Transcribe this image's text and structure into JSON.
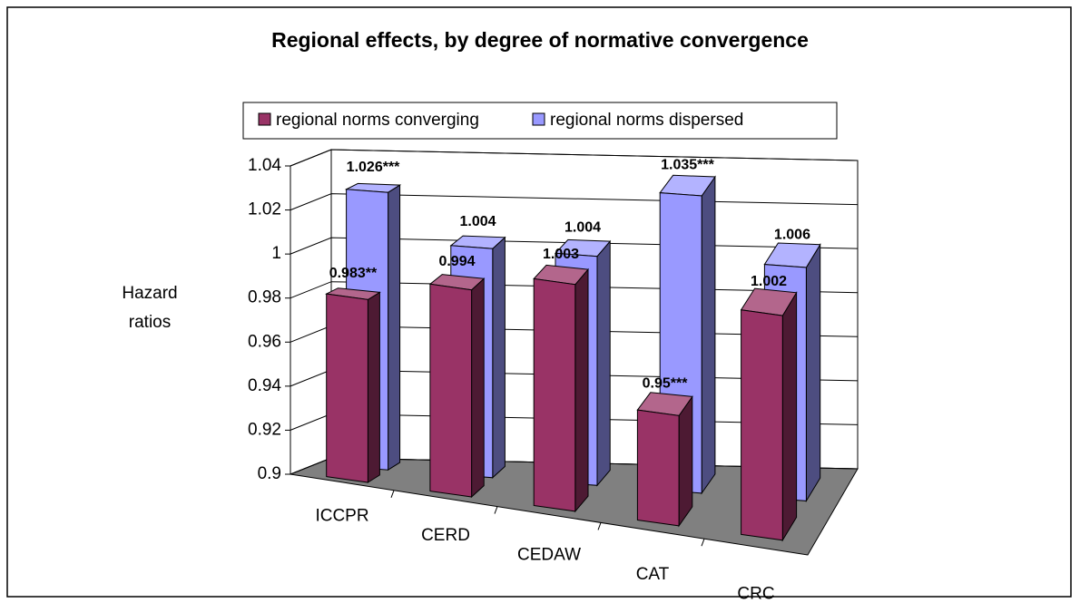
{
  "chart_data": {
    "type": "bar3d",
    "title": "Regional effects, by degree of normative convergence",
    "y_label": "Hazard ratios",
    "categories": [
      "ICCPR",
      "CERD",
      "CEDAW",
      "CAT",
      "CRC"
    ],
    "series": [
      {
        "name": "regional norms converging",
        "color": "#993366",
        "values": [
          0.983,
          0.994,
          1.003,
          0.95,
          1.002
        ],
        "value_labels": [
          "0.983**",
          "0.994",
          "1.003",
          "0.95***",
          "1.002"
        ]
      },
      {
        "name": "regional norms dispersed",
        "color": "#9999ff",
        "values": [
          1.026,
          1.004,
          1.004,
          1.035,
          1.006
        ],
        "value_labels": [
          "1.026***",
          "1.004",
          "1.004",
          "1.035***",
          "1.006"
        ]
      }
    ],
    "ylim": [
      0.9,
      1.04
    ],
    "yticks": [
      0.9,
      0.92,
      0.94,
      0.96,
      0.98,
      1,
      1.02,
      1.04
    ],
    "grid": true,
    "legend": "top",
    "floor_color": "#808080"
  }
}
